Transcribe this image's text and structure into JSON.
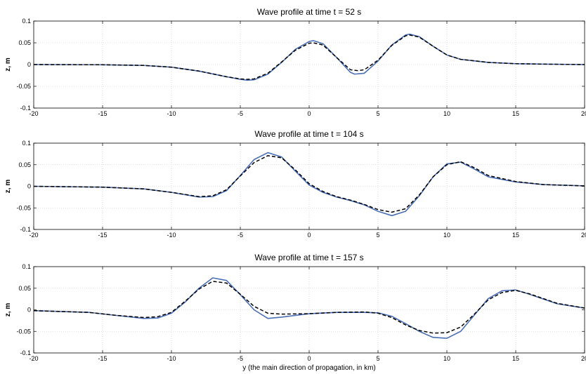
{
  "chart_data": [
    {
      "type": "line",
      "title": "Wave profile at time t = 52 s",
      "ylabel": "z, m",
      "xlabel": "",
      "xlim": [
        -20,
        20
      ],
      "ylim": [
        -0.1,
        0.1
      ],
      "xticks": [
        "-20",
        "-15",
        "-10",
        "-5",
        "0",
        "5",
        "10",
        "15",
        "20"
      ],
      "yticks": [
        "0.1",
        "0.05",
        "0",
        "-0.05",
        "-0.1"
      ],
      "grid": true,
      "series": [
        {
          "style": "solid",
          "color": "#4a6fb5",
          "x": [
            -20,
            -15,
            -12,
            -10,
            -8,
            -6,
            -5,
            -4.5,
            -4,
            -3,
            -2,
            -1,
            0,
            0.3,
            1,
            2,
            3,
            3.3,
            4,
            5,
            6,
            7,
            7.3,
            8,
            9,
            10,
            11,
            13,
            15,
            17,
            20
          ],
          "y": [
            0,
            -0.0005,
            -0.002,
            -0.006,
            -0.015,
            -0.028,
            -0.034,
            -0.036,
            -0.035,
            -0.022,
            0.005,
            0.035,
            0.053,
            0.055,
            0.048,
            0.016,
            -0.018,
            -0.022,
            -0.02,
            0.008,
            0.045,
            0.068,
            0.07,
            0.064,
            0.042,
            0.022,
            0.012,
            0.005,
            0.002,
            0.001,
            0
          ]
        },
        {
          "style": "dashed",
          "color": "#000000",
          "x": [
            -20,
            -15,
            -12,
            -10,
            -8,
            -6,
            -5,
            -4.5,
            -4,
            -3,
            -2,
            -1,
            0,
            0.3,
            1,
            2,
            3,
            3.5,
            4,
            5,
            6,
            7,
            7.3,
            8,
            9,
            10,
            11,
            13,
            15,
            17,
            20
          ],
          "y": [
            0,
            -0.0005,
            -0.002,
            -0.006,
            -0.015,
            -0.028,
            -0.033,
            -0.034,
            -0.033,
            -0.02,
            0.006,
            0.033,
            0.049,
            0.05,
            0.045,
            0.016,
            -0.012,
            -0.014,
            -0.012,
            0.01,
            0.044,
            0.066,
            0.068,
            0.063,
            0.042,
            0.022,
            0.012,
            0.005,
            0.002,
            0.001,
            0
          ]
        }
      ]
    },
    {
      "type": "line",
      "title": "Wave profile at time t = 104 s",
      "ylabel": "z, m",
      "xlabel": "",
      "xlim": [
        -20,
        20
      ],
      "ylim": [
        -0.1,
        0.1
      ],
      "xticks": [
        "-20",
        "-15",
        "-10",
        "-5",
        "0",
        "5",
        "10",
        "15",
        "20"
      ],
      "yticks": [
        "0.1",
        "0.05",
        "0",
        "-0.05",
        "-0.1"
      ],
      "grid": true,
      "series": [
        {
          "style": "solid",
          "color": "#4a6fb5",
          "x": [
            -20,
            -15,
            -12,
            -10,
            -8,
            -7,
            -6,
            -5,
            -4,
            -3,
            -2,
            -1,
            0,
            1,
            2,
            3,
            4,
            5,
            6,
            7,
            8,
            9,
            10,
            11,
            12,
            13,
            15,
            17,
            20
          ],
          "y": [
            0,
            -0.002,
            -0.006,
            -0.014,
            -0.025,
            -0.024,
            -0.01,
            0.025,
            0.062,
            0.078,
            0.068,
            0.035,
            0.003,
            -0.014,
            -0.025,
            -0.033,
            -0.043,
            -0.058,
            -0.068,
            -0.058,
            -0.022,
            0.022,
            0.052,
            0.056,
            0.04,
            0.022,
            0.01,
            0.004,
            0.001
          ]
        },
        {
          "style": "dashed",
          "color": "#000000",
          "x": [
            -20,
            -15,
            -12,
            -10,
            -8,
            -7,
            -6,
            -5,
            -4,
            -3,
            -2,
            -1,
            0,
            1,
            2,
            3,
            4,
            5,
            6,
            7,
            8,
            9,
            10,
            11,
            12,
            13,
            15,
            17,
            20
          ],
          "y": [
            0,
            -0.002,
            -0.006,
            -0.014,
            -0.024,
            -0.022,
            -0.008,
            0.024,
            0.055,
            0.071,
            0.066,
            0.038,
            0.006,
            -0.012,
            -0.024,
            -0.032,
            -0.042,
            -0.054,
            -0.06,
            -0.052,
            -0.02,
            0.022,
            0.05,
            0.057,
            0.043,
            0.025,
            0.011,
            0.004,
            0.001
          ]
        }
      ]
    },
    {
      "type": "line",
      "title": "Wave profile at time t = 157 s",
      "ylabel": "z, m",
      "xlabel": "y (the main direction of propagation, in km)",
      "xlim": [
        -20,
        20
      ],
      "ylim": [
        -0.1,
        0.1
      ],
      "xticks": [
        "-20",
        "-15",
        "-10",
        "-5",
        "0",
        "5",
        "10",
        "15",
        "20"
      ],
      "yticks": [
        "0.1",
        "0.05",
        "0",
        "-0.05",
        "-0.1"
      ],
      "grid": true,
      "series": [
        {
          "style": "solid",
          "color": "#4a6fb5",
          "x": [
            -20,
            -16,
            -14,
            -12,
            -11,
            -10,
            -9,
            -8,
            -7,
            -6,
            -5,
            -4,
            -3,
            -2,
            0,
            2,
            4,
            5,
            6,
            7,
            8,
            9,
            10,
            11,
            12,
            13,
            14,
            15,
            16,
            18,
            20
          ],
          "y": [
            -0.002,
            -0.006,
            -0.013,
            -0.02,
            -0.019,
            -0.008,
            0.018,
            0.05,
            0.074,
            0.068,
            0.035,
            0.0,
            -0.02,
            -0.017,
            -0.009,
            -0.006,
            -0.006,
            -0.007,
            -0.015,
            -0.032,
            -0.05,
            -0.064,
            -0.066,
            -0.05,
            -0.012,
            0.026,
            0.044,
            0.046,
            0.036,
            0.014,
            0.004
          ]
        },
        {
          "style": "dashed",
          "color": "#000000",
          "x": [
            -20,
            -16,
            -14,
            -12,
            -11,
            -10,
            -9,
            -8,
            -7,
            -6,
            -5,
            -4,
            -3,
            -2,
            0,
            2,
            4,
            5,
            6,
            7,
            8,
            9,
            10,
            11,
            12,
            13,
            14,
            15,
            16,
            18,
            20
          ],
          "y": [
            -0.002,
            -0.006,
            -0.013,
            -0.018,
            -0.016,
            -0.006,
            0.02,
            0.048,
            0.066,
            0.062,
            0.036,
            0.008,
            -0.008,
            -0.01,
            -0.009,
            -0.006,
            -0.005,
            -0.008,
            -0.018,
            -0.035,
            -0.048,
            -0.054,
            -0.053,
            -0.04,
            -0.01,
            0.023,
            0.04,
            0.045,
            0.037,
            0.015,
            0.004
          ]
        }
      ]
    }
  ]
}
